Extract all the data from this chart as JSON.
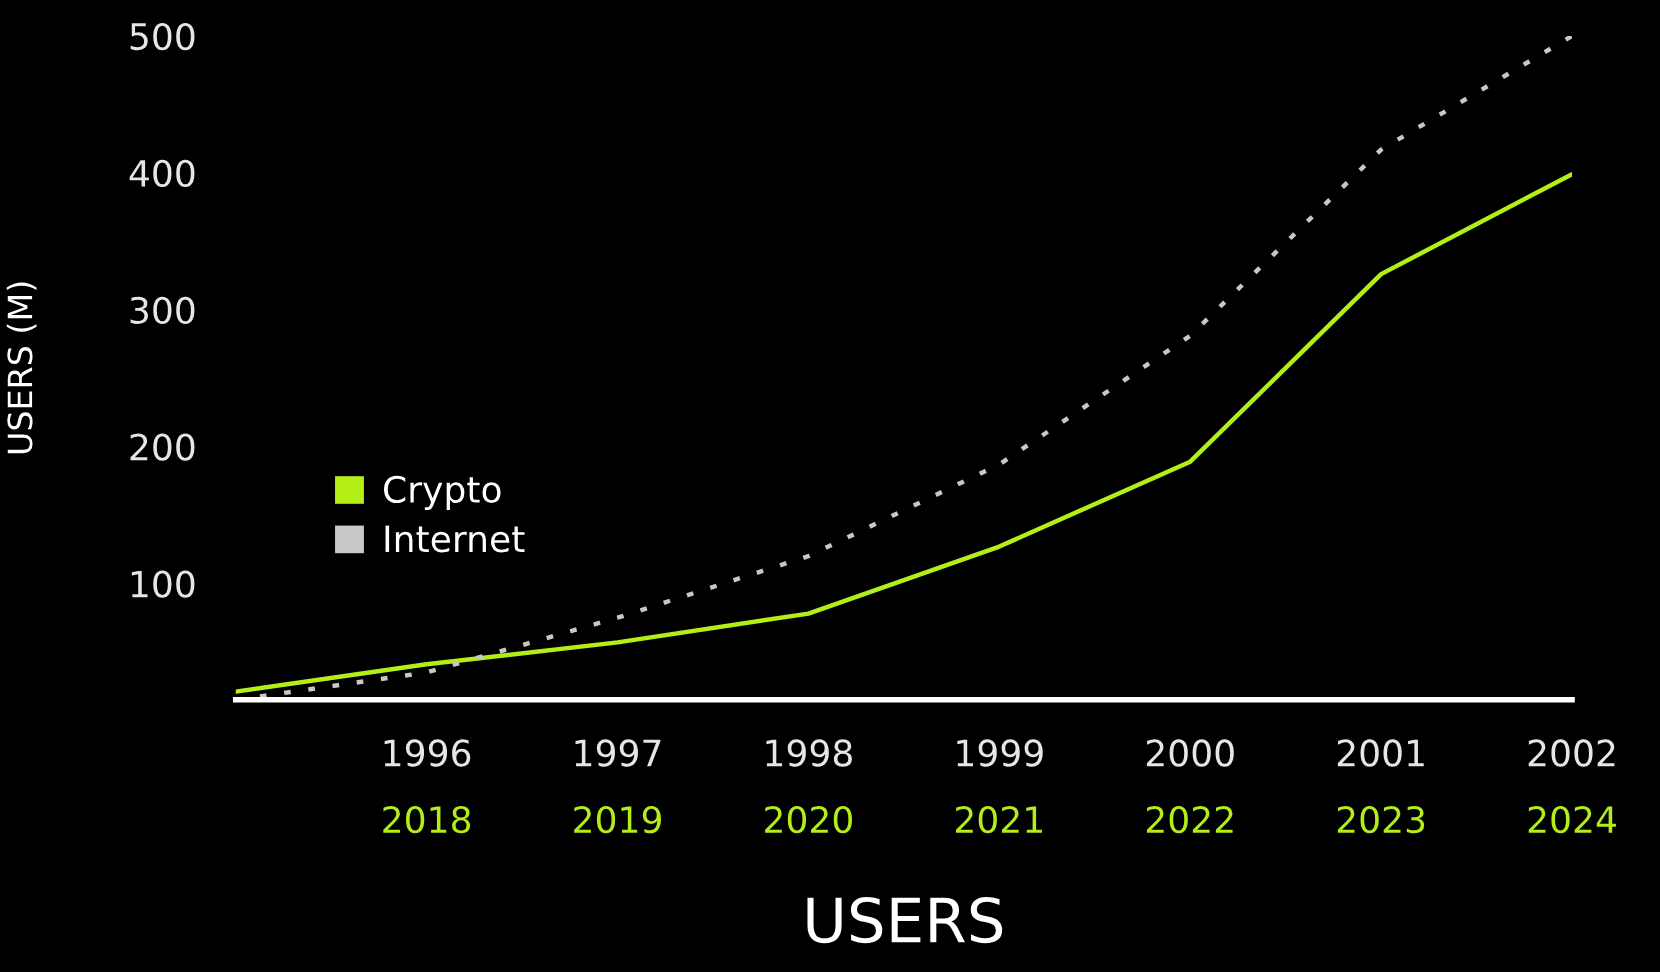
{
  "chart_data": {
    "type": "line",
    "xlabel": "USERS",
    "ylabel": "USERS (M)",
    "x": [
      1995,
      1996,
      1997,
      1998,
      1999,
      2000,
      2001,
      2002
    ],
    "xlim": [
      1995,
      2002
    ],
    "xticks": [
      1996,
      1997,
      1998,
      1999,
      2000,
      2001,
      2002
    ],
    "x2lim": [
      2017,
      2024
    ],
    "x2ticks": [
      2018,
      2019,
      2020,
      2021,
      2022,
      2023,
      2024
    ],
    "ylim": [
      15,
      500
    ],
    "yticks": [
      100,
      200,
      300,
      400,
      500
    ],
    "series": [
      {
        "name": "Crypto",
        "color": "#b3ee17",
        "line_style": "solid",
        "values": [
          21,
          41,
          57,
          78,
          127,
          189,
          326,
          399
        ]
      },
      {
        "name": "Internet",
        "color": "#c8c8c8",
        "line_style": "dotted",
        "values": [
          15,
          35,
          75,
          120,
          187,
          281,
          417,
          500
        ]
      }
    ],
    "grid": false,
    "legend": "center left",
    "marker": "none"
  }
}
